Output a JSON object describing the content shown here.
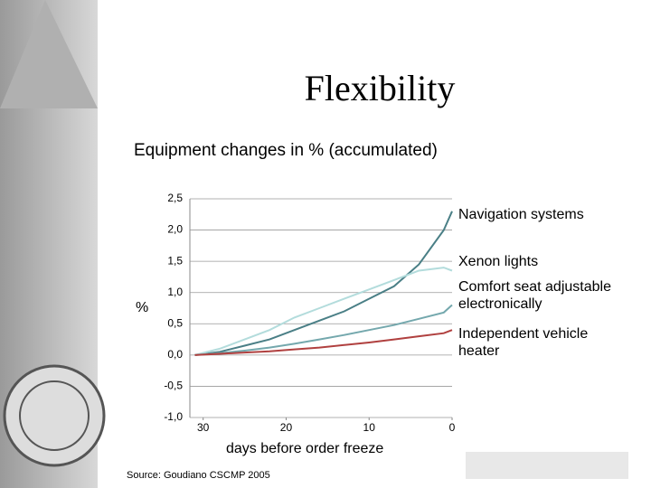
{
  "slide_title": "Flexibility",
  "chart_data": {
    "type": "line",
    "title": "Equipment changes in % (accumulated)",
    "x_label": "days before order freeze",
    "y_label": "%",
    "source": "Source: Goudiano CSCMP 2005",
    "x": [
      31,
      28,
      25,
      22,
      19,
      16,
      13,
      10,
      7,
      4,
      1,
      0
    ],
    "xlim": [
      31.6,
      0
    ],
    "xticks": [
      30,
      20,
      10,
      0
    ],
    "ylim": [
      -1,
      2.5
    ],
    "yticks": [
      {
        "value": 2.5,
        "label": "2,5"
      },
      {
        "value": 2.0,
        "label": "2,0"
      },
      {
        "value": 1.5,
        "label": "1,5"
      },
      {
        "value": 1.0,
        "label": "1,0"
      },
      {
        "value": 0.5,
        "label": "0,5"
      },
      {
        "value": 0,
        "label": "0,0"
      },
      {
        "value": -0.5,
        "label": "-0,5"
      },
      {
        "value": -1.0,
        "label": "-1,0"
      }
    ],
    "grid": true,
    "series": [
      {
        "name": "Navigation systems",
        "color": "#4a7f86",
        "values": [
          0,
          0.05,
          0.15,
          0.25,
          0.4,
          0.55,
          0.7,
          0.9,
          1.1,
          1.45,
          2.0,
          2.3
        ]
      },
      {
        "name": "Xenon lights",
        "color": "#b3dcdc",
        "values": [
          0,
          0.1,
          0.25,
          0.4,
          0.6,
          0.75,
          0.9,
          1.05,
          1.2,
          1.35,
          1.4,
          1.35
        ]
      },
      {
        "name": "Comfort seat adjustable electronically",
        "color": "#74a8ad",
        "values": [
          0,
          0.03,
          0.07,
          0.12,
          0.18,
          0.25,
          0.32,
          0.4,
          0.48,
          0.58,
          0.68,
          0.8
        ]
      },
      {
        "name": "Independent vehicle heater",
        "color": "#b0403f",
        "values": [
          0,
          0.02,
          0.04,
          0.06,
          0.09,
          0.12,
          0.16,
          0.2,
          0.25,
          0.3,
          0.35,
          0.4
        ]
      }
    ]
  }
}
